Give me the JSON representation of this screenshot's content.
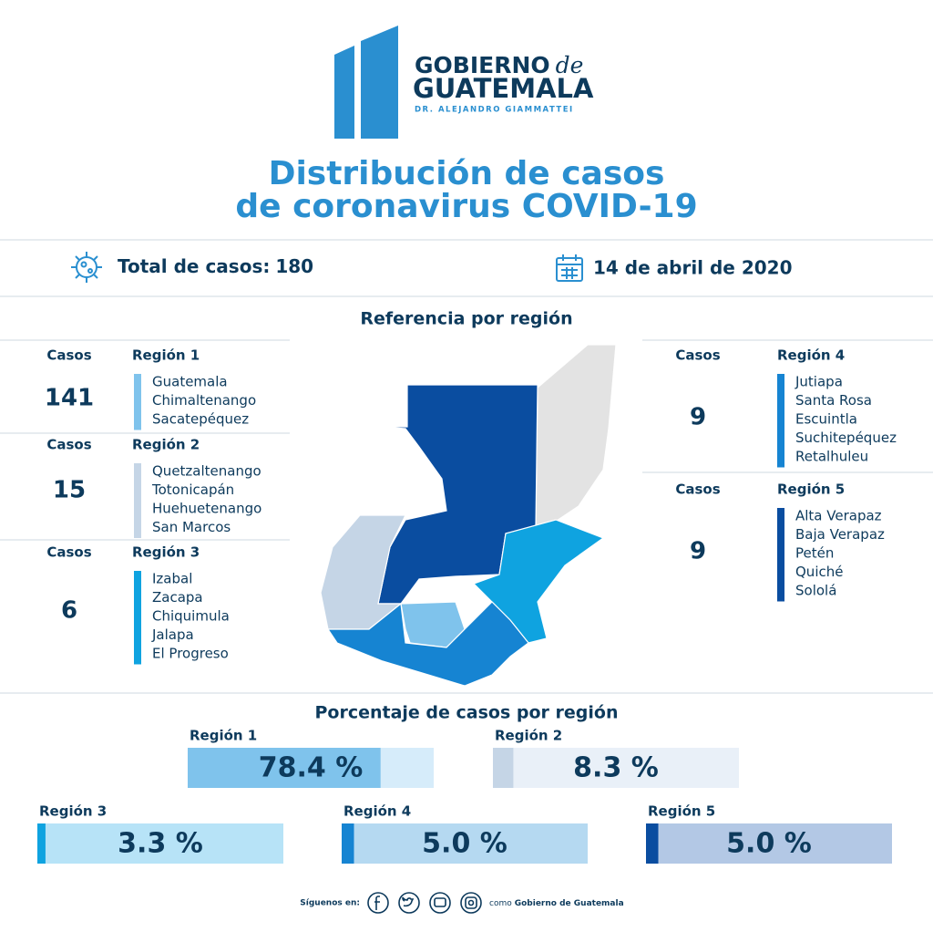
{
  "header": {
    "brand_line1": "GOBIERNO",
    "brand_de": "de",
    "brand_line2": "GUATEMALA",
    "brand_sub": "DR. ALEJANDRO GIAMMATTEI",
    "title_line1": "Distribución de casos",
    "title_line2": "de coronavirus COVID-19"
  },
  "summary": {
    "total_label": "Total de casos:",
    "total": 180,
    "date": "14 de abril de 2020"
  },
  "map_title": "Referencia por región",
  "cases_label": "Casos",
  "regions": [
    {
      "name": "Región 1",
      "cases": 141,
      "departments": [
        "Guatemala",
        "Chimaltenango",
        "Sacatepéquez"
      ],
      "percent": 78.4,
      "percent_label": "78.4 %",
      "color": "#7fc3ec",
      "track_color": "#d6ecfa"
    },
    {
      "name": "Región 2",
      "cases": 15,
      "departments": [
        "Quetzaltenango",
        "Totonicapán",
        "Huehuetenango",
        "San Marcos"
      ],
      "percent": 8.3,
      "percent_label": "8.3 %",
      "color": "#c5d5e6",
      "track_color": "#e9f0f8"
    },
    {
      "name": "Región 3",
      "cases": 6,
      "departments": [
        "Izabal",
        "Zacapa",
        "Chiquimula",
        "Jalapa",
        "El Progreso"
      ],
      "percent": 3.3,
      "percent_label": "3.3 %",
      "color": "#0fa3e0",
      "track_color": "#b7e3f7"
    },
    {
      "name": "Región 4",
      "cases": 9,
      "departments": [
        "Jutiapa",
        "Santa Rosa",
        "Escuintla",
        "Suchitepéquez",
        "Retalhuleu"
      ],
      "percent": 5.0,
      "percent_label": "5.0 %",
      "color": "#1684d2",
      "track_color": "#b5d9f1"
    },
    {
      "name": "Región 5",
      "cases": 9,
      "departments": [
        "Alta Verapaz",
        "Baja Verapaz",
        "Petén",
        "Quiché",
        "Sololá"
      ],
      "percent": 5.0,
      "percent_label": "5.0 %",
      "color": "#0a4da0",
      "track_color": "#b3c8e5"
    }
  ],
  "percent_title": "Porcentaje de casos por región",
  "footer": {
    "follow": "Síguenos en:",
    "como": "como",
    "org": "Gobierno de Guatemala"
  }
}
